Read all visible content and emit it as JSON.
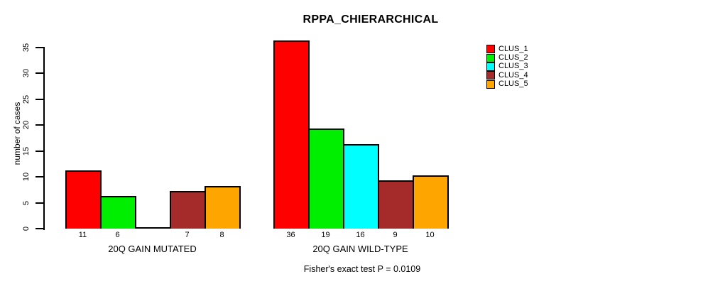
{
  "title": "RPPA_CHIERARCHICAL",
  "annotation": "Fisher's exact test P = 0.0109",
  "chart_data": {
    "type": "bar",
    "title": "RPPA_CHIERARCHICAL",
    "ylabel": "number of cases",
    "xlabel": "",
    "ylim": [
      0,
      36
    ],
    "yticks": [
      0,
      5,
      10,
      15,
      20,
      25,
      30,
      35
    ],
    "grid": false,
    "legend_position": "right",
    "categories": [
      "20Q GAIN MUTATED",
      "20Q GAIN WILD-TYPE"
    ],
    "series": [
      {
        "name": "CLUS_1",
        "color": "#ff0000",
        "values": [
          11,
          36
        ]
      },
      {
        "name": "CLUS_2",
        "color": "#00ee00",
        "values": [
          6,
          19
        ]
      },
      {
        "name": "CLUS_3",
        "color": "#00ffff",
        "values": [
          0,
          16
        ]
      },
      {
        "name": "CLUS_4",
        "color": "#a52a2a",
        "values": [
          7,
          9
        ]
      },
      {
        "name": "CLUS_5",
        "color": "#ffa500",
        "values": [
          8,
          10
        ]
      }
    ],
    "value_labels": [
      [
        "11",
        "6",
        "",
        "7",
        "8"
      ],
      [
        "36",
        "19",
        "16",
        "9",
        "10"
      ]
    ],
    "annotation": "Fisher's exact test P = 0.0109"
  }
}
